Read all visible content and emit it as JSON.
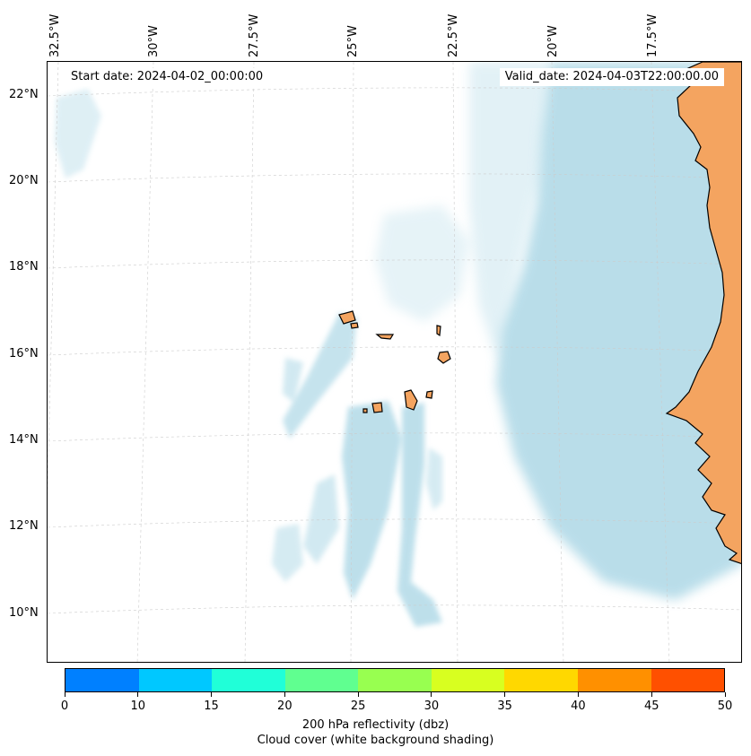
{
  "map": {
    "start_date": "Start date: 2024-04-02_00:00:00",
    "valid_date": "Valid_date: 2024-04-03T22:00:00.00",
    "lat_labels": [
      "22°N",
      "20°N",
      "18°N",
      "16°N",
      "14°N",
      "12°N",
      "10°N"
    ],
    "lon_labels": [
      "32.5°W",
      "30°W",
      "27.5°W",
      "25°W",
      "22.5°W",
      "20°W",
      "17.5°W"
    ],
    "land_color": "#f4a460",
    "cloud_color": "#add8e6",
    "gridline_color": "#cccccc"
  },
  "colorbar": {
    "ticks": [
      "0",
      "10",
      "15",
      "20",
      "25",
      "30",
      "35",
      "40",
      "45",
      "50"
    ],
    "colors": [
      "#0080ff",
      "#00c8ff",
      "#20ffd8",
      "#60ff90",
      "#98ff50",
      "#d8ff20",
      "#ffd800",
      "#ff9000",
      "#ff5000"
    ],
    "label": "200 hPa reflectivity (dbz)",
    "sublabel": "Cloud cover (white background shading)"
  }
}
